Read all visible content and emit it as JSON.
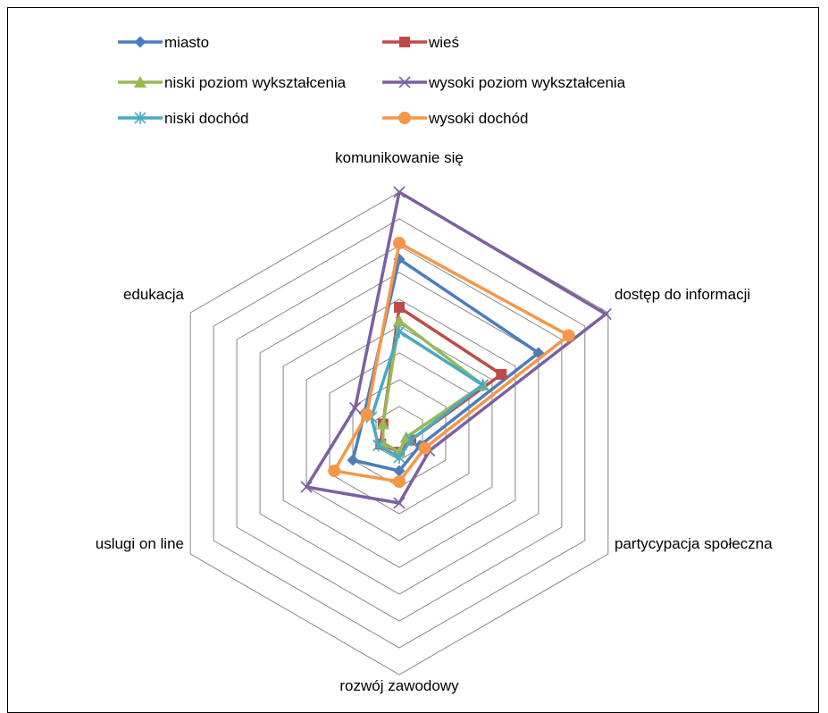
{
  "chart_data": {
    "type": "radar",
    "title": "",
    "axes": [
      "komunikowanie się",
      "dostęp do informacji",
      "partycypacja społeczna",
      "rozwój zawodowy",
      "uslugi on line",
      "edukacja"
    ],
    "rmax": 9,
    "grid_levels": 9,
    "grid": true,
    "legend_position": "top",
    "series": [
      {
        "name": "miasto",
        "color": "#4a7ebb",
        "marker": "diamond",
        "values": [
          6.5,
          6.0,
          0.9,
          1.4,
          2.0,
          1.5
        ]
      },
      {
        "name": "wieś",
        "color": "#be4b48",
        "marker": "square",
        "values": [
          4.7,
          4.4,
          0.5,
          0.7,
          0.8,
          0.7
        ]
      },
      {
        "name": "niski poziom wykształcenia",
        "color": "#98b954",
        "marker": "triangle",
        "values": [
          4.2,
          3.6,
          0.3,
          0.7,
          0.7,
          0.7
        ]
      },
      {
        "name": "wysoki poziom wykształcenia",
        "color": "#7d60a0",
        "marker": "x",
        "values": [
          9.0,
          8.9,
          1.3,
          2.6,
          4.0,
          1.9
        ]
      },
      {
        "name": "niski dochód",
        "color": "#46aac5",
        "marker": "star",
        "values": [
          3.8,
          3.6,
          0.5,
          0.9,
          0.9,
          1.2
        ]
      },
      {
        "name": "wysoki dochód",
        "color": "#f79646",
        "marker": "circle",
        "values": [
          7.1,
          7.3,
          1.1,
          1.8,
          2.8,
          1.4
        ]
      }
    ]
  }
}
